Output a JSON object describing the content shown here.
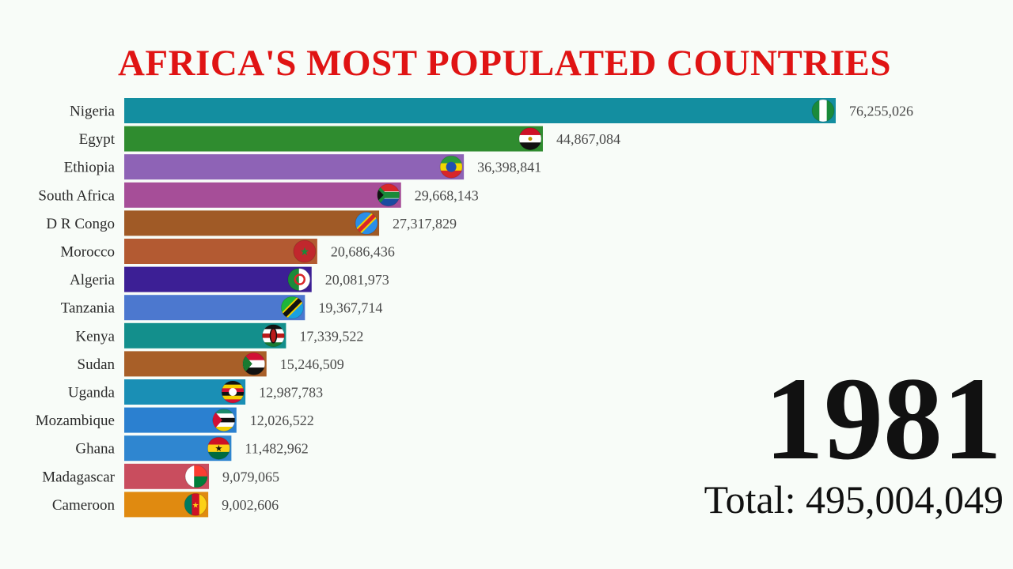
{
  "chart_data": {
    "type": "bar",
    "orientation": "horizontal",
    "title": "AFRICA'S MOST POPULATED COUNTRIES",
    "categories": [
      "Nigeria",
      "Egypt",
      "Ethiopia",
      "South Africa",
      "D R Congo",
      "Morocco",
      "Algeria",
      "Tanzania",
      "Kenya",
      "Sudan",
      "Uganda",
      "Mozambique",
      "Ghana",
      "Madagascar",
      "Cameroon"
    ],
    "values": [
      76255026,
      44867084,
      36398841,
      29668143,
      27317829,
      20686436,
      20081973,
      19367714,
      17339522,
      15246509,
      12987783,
      12026522,
      11482962,
      9079065,
      9002606
    ],
    "value_labels": [
      "76,255,026",
      "44,867,084",
      "36,398,841",
      "29,668,143",
      "27,317,829",
      "20,686,436",
      "20,081,973",
      "19,367,714",
      "17,339,522",
      "15,246,509",
      "12,987,783",
      "12,026,522",
      "11,482,962",
      "9,079,065",
      "9,002,606"
    ],
    "colors": [
      "#138ea0",
      "#2f8c2f",
      "#8e63b6",
      "#a64e98",
      "#a05a26",
      "#b35a32",
      "#3c1f95",
      "#4c78cf",
      "#138f8c",
      "#a85f28",
      "#1a8fb5",
      "#2b80d0",
      "#2f86d0",
      "#c94d5e",
      "#e08a10"
    ],
    "flags": [
      "nigeria-flag",
      "egypt-flag",
      "ethiopia-flag",
      "south-africa-flag",
      "dr-congo-flag",
      "morocco-flag",
      "algeria-flag",
      "tanzania-flag",
      "kenya-flag",
      "sudan-flag",
      "uganda-flag",
      "mozambique-flag",
      "ghana-flag",
      "madagascar-flag",
      "cameroon-flag"
    ],
    "xlim": [
      0,
      76255026
    ],
    "grid": false,
    "legend": "none"
  },
  "year": "1981",
  "total_label": "Total: 495,004,049"
}
